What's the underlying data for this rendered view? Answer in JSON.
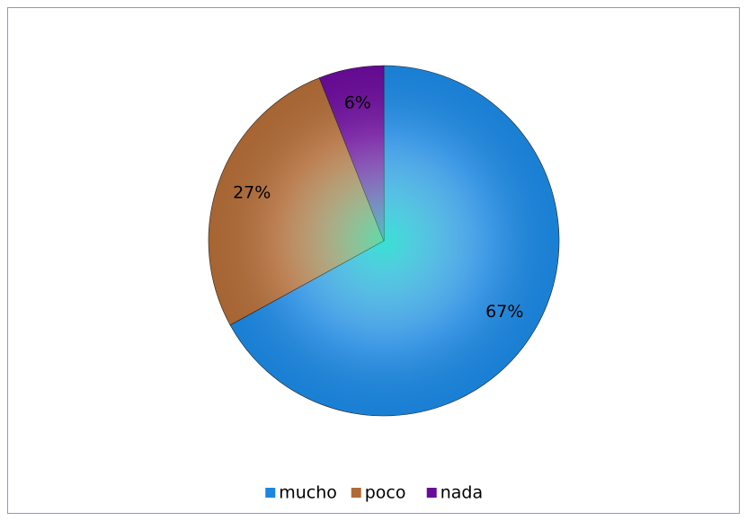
{
  "chart_data": {
    "type": "pie",
    "categories": [
      "mucho",
      "poco",
      "nada"
    ],
    "values": [
      67,
      27,
      6
    ],
    "value_labels": [
      "67%",
      "27%",
      "6%"
    ],
    "colors": [
      "#1a86e0",
      "#b06a35",
      "#6a0a9a"
    ],
    "legend": "bottom"
  }
}
